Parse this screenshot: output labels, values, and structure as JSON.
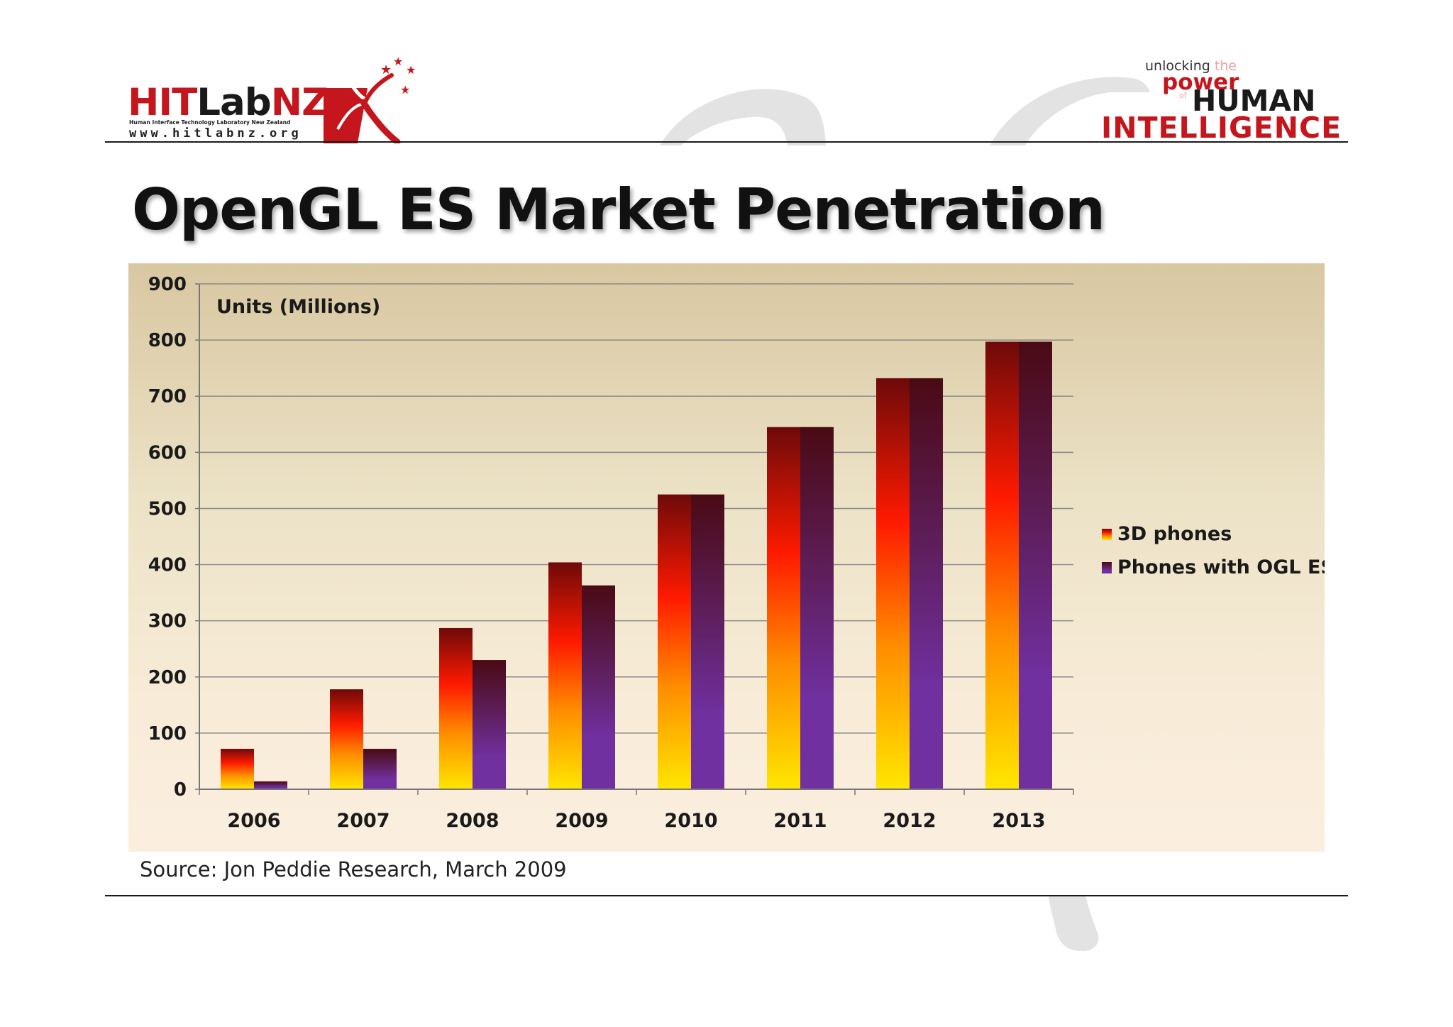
{
  "logo_left": {
    "main_red": "HIT",
    "main_dark": "Lab",
    "main_red2": "NZ",
    "subtitle": "Human Interface Technology Laboratory New Zealand",
    "url": "www.hitlabnz.org"
  },
  "logo_right": {
    "unlocking": "unlocking",
    "the": "the",
    "power": "power",
    "of": "of",
    "human": "HUMAN",
    "intelligence": "INTELLIGENCE"
  },
  "title": "OpenGL ES Market Penetration",
  "source": "Source: Jon Peddie Research, March 2009",
  "colors": {
    "brand_red": "#c4161c",
    "series1_top": "#6e0a0a",
    "series1_mid": "#ff1a00",
    "series1_bottom": "#ffe600",
    "series2_top": "#5a0f22",
    "series2_bottom": "#7030a0"
  },
  "chart_data": {
    "type": "bar",
    "ylabel": "Units (Millions)",
    "xlabel": "",
    "title": "",
    "ylim": [
      0,
      900
    ],
    "yticks": [
      0,
      100,
      200,
      300,
      400,
      500,
      600,
      700,
      800,
      900
    ],
    "grid": true,
    "legend_position": "right",
    "categories": [
      "2006",
      "2007",
      "2008",
      "2009",
      "2010",
      "2011",
      "2012",
      "2013"
    ],
    "series": [
      {
        "name": "3D phones",
        "values": [
          72,
          178,
          287,
          404,
          525,
          645,
          732,
          797
        ]
      },
      {
        "name": "Phones with OGL ES",
        "values": [
          14,
          72,
          230,
          363,
          525,
          645,
          732,
          797
        ]
      }
    ]
  }
}
